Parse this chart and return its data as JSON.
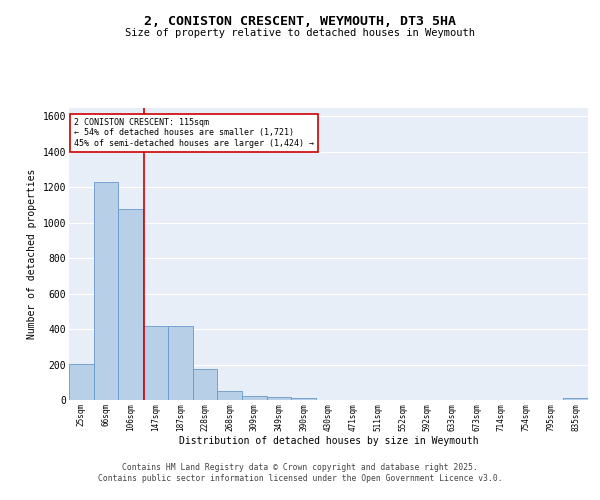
{
  "title": "2, CONISTON CRESCENT, WEYMOUTH, DT3 5HA",
  "subtitle": "Size of property relative to detached houses in Weymouth",
  "xlabel": "Distribution of detached houses by size in Weymouth",
  "ylabel": "Number of detached properties",
  "bin_labels": [
    "25sqm",
    "66sqm",
    "106sqm",
    "147sqm",
    "187sqm",
    "228sqm",
    "268sqm",
    "309sqm",
    "349sqm",
    "390sqm",
    "430sqm",
    "471sqm",
    "511sqm",
    "552sqm",
    "592sqm",
    "633sqm",
    "673sqm",
    "714sqm",
    "754sqm",
    "795sqm",
    "835sqm"
  ],
  "bar_values": [
    205,
    1230,
    1075,
    415,
    415,
    175,
    50,
    25,
    15,
    10,
    0,
    0,
    0,
    0,
    0,
    0,
    0,
    0,
    0,
    0,
    10
  ],
  "bar_color": "#b8cfe8",
  "bar_edge_color": "#6699cc",
  "background_color": "#e8eef8",
  "grid_color": "#ffffff",
  "vline_x_index": 2.55,
  "vline_color": "#cc0000",
  "annotation_text": "2 CONISTON CRESCENT: 115sqm\n← 54% of detached houses are smaller (1,721)\n45% of semi-detached houses are larger (1,424) →",
  "annotation_box_color": "#ffffff",
  "annotation_box_edge": "#cc0000",
  "ylim": [
    0,
    1650
  ],
  "yticks": [
    0,
    200,
    400,
    600,
    800,
    1000,
    1200,
    1400,
    1600
  ],
  "footer_line1": "Contains HM Land Registry data © Crown copyright and database right 2025.",
  "footer_line2": "Contains public sector information licensed under the Open Government Licence v3.0."
}
